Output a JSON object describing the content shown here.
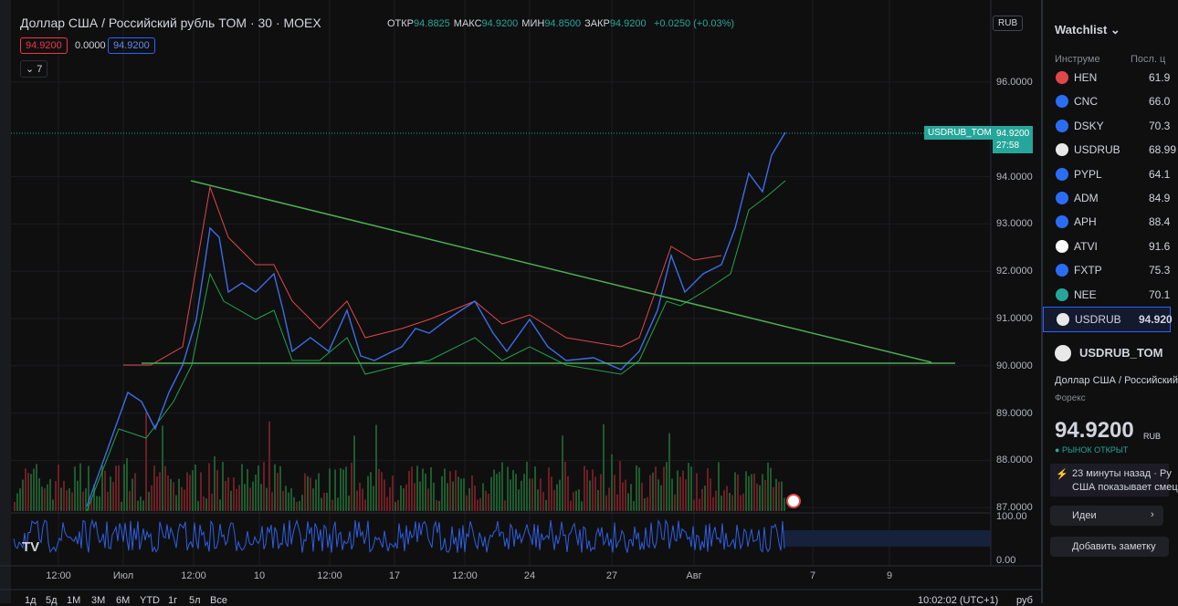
{
  "header": {
    "title": "Доллар США / Российский рубль TOM · 30 · MOEX",
    "ohlc": [
      {
        "label": "ОТКР",
        "value": "94.8825"
      },
      {
        "label": "МАКС",
        "value": "94.9200"
      },
      {
        "label": "МИН",
        "value": "94.8500"
      },
      {
        "label": "ЗАКР",
        "value": "94.9200"
      }
    ],
    "change": "+0.0250 (+0.03%)"
  },
  "badges": [
    "94.9200",
    "0.0000",
    "94.9200"
  ],
  "indicator_count": "7",
  "currency": "RUB",
  "price_axis": [
    "96.0000",
    "94.0000",
    "93.0000",
    "92.0000",
    "91.0000",
    "90.0000",
    "89.0000",
    "88.0000",
    "87.0000"
  ],
  "price_tag": {
    "symbol": "USDRUB_TOM",
    "price": "94.9200",
    "countdown": "27:58"
  },
  "osc_axis": [
    "100.00",
    "0.00"
  ],
  "time_axis": [
    "12:00",
    "Июл",
    "12:00",
    "10",
    "12:00",
    "17",
    "12:00",
    "24",
    "27",
    "Авг",
    "7",
    "9"
  ],
  "ranges": [
    "1д",
    "5д",
    "1М",
    "3М",
    "6М",
    "YTD",
    "1г",
    "5л",
    "Все"
  ],
  "clock": "10:02:02 (UTC+1)",
  "unit": "руб",
  "watchlist": {
    "title": "Watchlist",
    "columns": [
      "Инструме",
      "Посл. ц"
    ],
    "rows": [
      {
        "symbol": "HEN",
        "price": "61.9"
      },
      {
        "symbol": "CNC",
        "price": "66.0"
      },
      {
        "symbol": "DSKY",
        "price": "70.3"
      },
      {
        "symbol": "USDRUB",
        "price": "68.99"
      },
      {
        "symbol": "PYPL",
        "price": "64.1"
      },
      {
        "symbol": "ADM",
        "price": "84.9"
      },
      {
        "symbol": "APH",
        "price": "88.4"
      },
      {
        "symbol": "ATVI",
        "price": "91.6"
      },
      {
        "symbol": "FXTP",
        "price": "75.3"
      },
      {
        "symbol": "NEE",
        "price": "70.1"
      },
      {
        "symbol": "USDRUB",
        "price": "94.920"
      }
    ]
  },
  "details": {
    "symbol": "USDRUB_TOM",
    "name": "Доллар США / Российский",
    "category": "Форекс",
    "price": "94.9200",
    "currency": "RUB",
    "status": "РЫНОК ОТКРЫТ",
    "news": [
      "23 минуты назад · Ру",
      "США показывает смец"
    ],
    "ideas": "Идеи",
    "note": "Добавить заметку"
  }
}
